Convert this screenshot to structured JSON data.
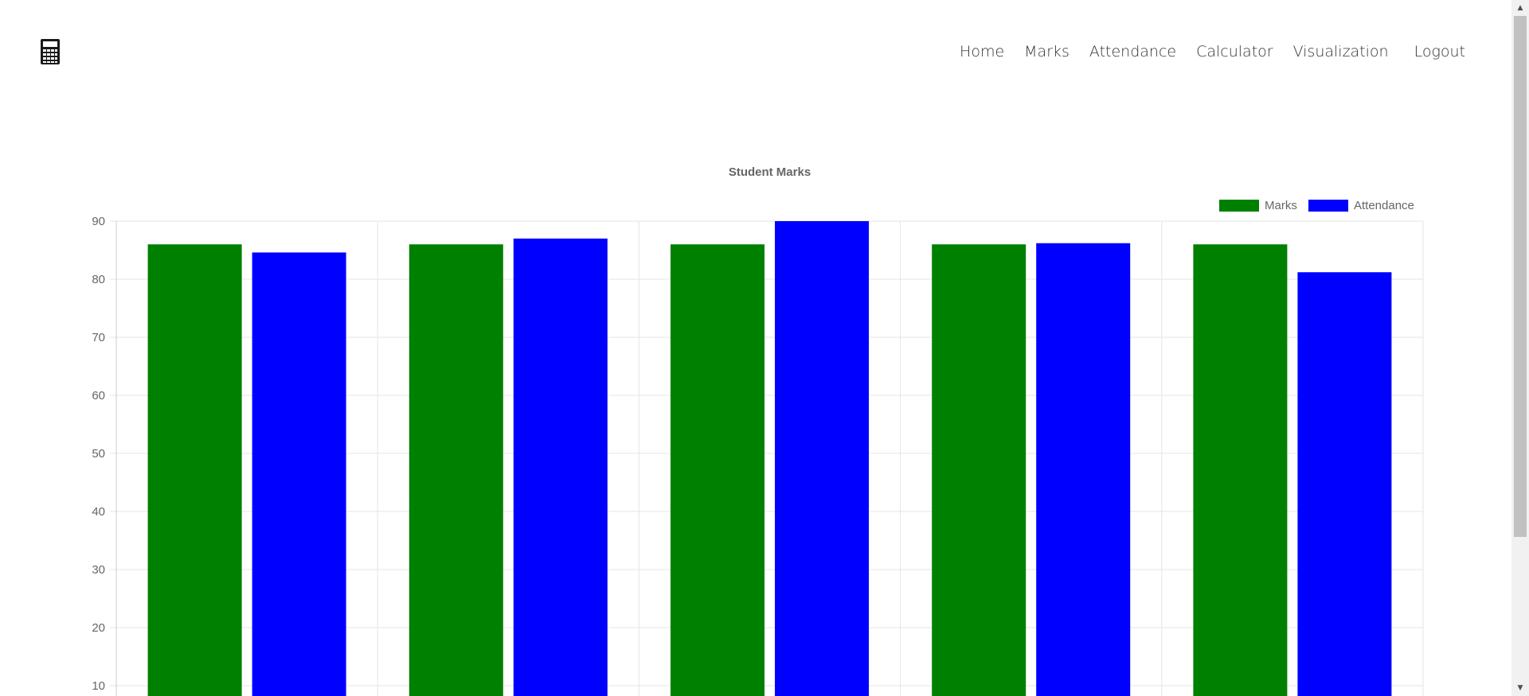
{
  "header": {
    "logo_icon": "calculator-icon",
    "nav": [
      {
        "label": "Home"
      },
      {
        "label": "Marks"
      },
      {
        "label": "Attendance"
      },
      {
        "label": "Calculator"
      },
      {
        "label": "Visualization"
      },
      {
        "label": "Logout"
      }
    ]
  },
  "chart_data": {
    "type": "bar",
    "title": "Student Marks",
    "xlabel": "",
    "ylabel": "",
    "categories": [
      "",
      "",
      "",
      "",
      ""
    ],
    "series": [
      {
        "name": "Marks",
        "color": "#008000",
        "values": [
          86,
          86,
          86,
          86,
          86
        ]
      },
      {
        "name": "Attendance",
        "color": "#0000ff",
        "values": [
          84.6,
          87,
          90,
          86.2,
          81.2
        ]
      }
    ],
    "ylim": [
      10,
      90
    ],
    "yticks": [
      "90",
      "80",
      "70",
      "60",
      "50",
      "40",
      "30",
      "20",
      "10"
    ],
    "grid": true,
    "legend": "top-right"
  },
  "scrollbar": {
    "up_icon": "scroll-up-arrow-icon",
    "down_icon": "scroll-down-arrow-icon"
  }
}
